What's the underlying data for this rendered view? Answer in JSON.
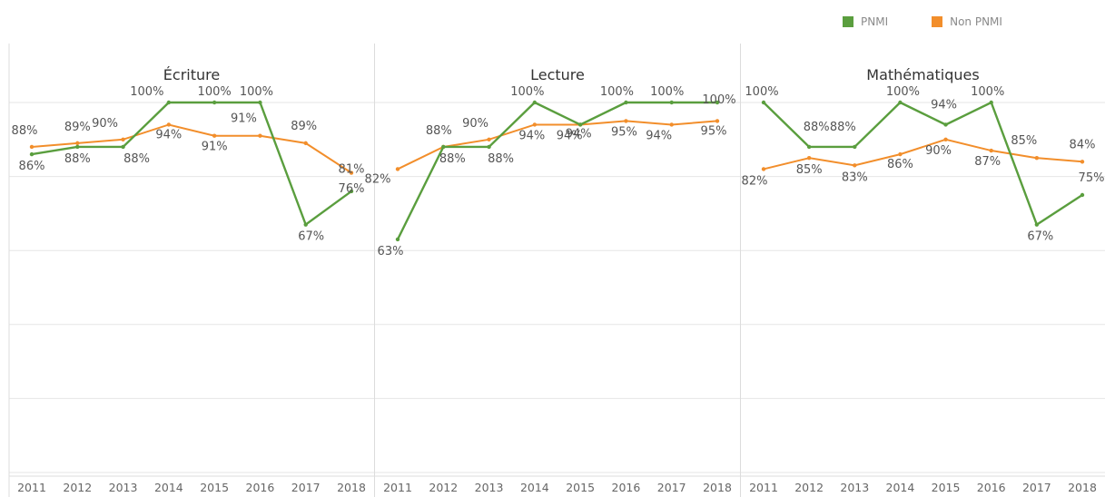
{
  "legend": {
    "items": [
      {
        "label": "PNMI",
        "color": "#5a9e3e"
      },
      {
        "label": "Non PNMI",
        "color": "#f28e2b"
      }
    ]
  },
  "colors": {
    "pnmi": "#5a9e3e",
    "non_pnmi": "#f28e2b",
    "grid": "#e6e6e6",
    "divider": "#dcdcdc"
  },
  "chart_data": {
    "type": "line",
    "ylim": [
      0,
      100
    ],
    "grid": true,
    "legend_position": "top-right",
    "x": [
      "2011",
      "2012",
      "2013",
      "2014",
      "2015",
      "2016",
      "2017",
      "2018"
    ],
    "panels": [
      {
        "title": "Écriture",
        "series": [
          {
            "name": "PNMI",
            "values": [
              86,
              88,
              88,
              100,
              100,
              100,
              67,
              76
            ]
          },
          {
            "name": "Non PNMI",
            "values": [
              88,
              89,
              90,
              94,
              91,
              91,
              89,
              81
            ]
          }
        ]
      },
      {
        "title": "Lecture",
        "series": [
          {
            "name": "PNMI",
            "values": [
              63,
              88,
              88,
              100,
              94,
              100,
              100,
              100
            ]
          },
          {
            "name": "Non PNMI",
            "values": [
              82,
              88,
              90,
              94,
              94,
              95,
              94,
              95
            ]
          }
        ]
      },
      {
        "title": "Mathématiques",
        "series": [
          {
            "name": "PNMI",
            "values": [
              100,
              88,
              88,
              100,
              94,
              100,
              67,
              75
            ]
          },
          {
            "name": "Non PNMI",
            "values": [
              82,
              85,
              83,
              86,
              90,
              87,
              85,
              84
            ]
          }
        ]
      }
    ]
  }
}
